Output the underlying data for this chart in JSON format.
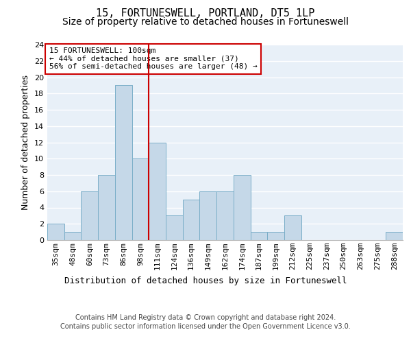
{
  "title": "15, FORTUNESWELL, PORTLAND, DT5 1LP",
  "subtitle": "Size of property relative to detached houses in Fortuneswell",
  "xlabel": "Distribution of detached houses by size in Fortuneswell",
  "ylabel": "Number of detached properties",
  "categories": [
    "35sqm",
    "48sqm",
    "60sqm",
    "73sqm",
    "86sqm",
    "98sqm",
    "111sqm",
    "124sqm",
    "136sqm",
    "149sqm",
    "162sqm",
    "174sqm",
    "187sqm",
    "199sqm",
    "212sqm",
    "225sqm",
    "237sqm",
    "250sqm",
    "263sqm",
    "275sqm",
    "288sqm"
  ],
  "values": [
    2,
    1,
    6,
    8,
    19,
    10,
    12,
    3,
    5,
    6,
    6,
    8,
    1,
    1,
    3,
    0,
    0,
    0,
    0,
    0,
    1
  ],
  "bar_color": "#c5d8e8",
  "bar_edge_color": "#7aaec8",
  "vline_index": 5,
  "vline_color": "#cc0000",
  "annotation_box_color": "#cc0000",
  "annotation_text_line1": "15 FORTUNESWELL: 100sqm",
  "annotation_text_line2": "← 44% of detached houses are smaller (37)",
  "annotation_text_line3": "56% of semi-detached houses are larger (48) →",
  "ylim": [
    0,
    24
  ],
  "yticks": [
    0,
    2,
    4,
    6,
    8,
    10,
    12,
    14,
    16,
    18,
    20,
    22,
    24
  ],
  "background_color": "#e8f0f8",
  "grid_color": "#ffffff",
  "footer_line1": "Contains HM Land Registry data © Crown copyright and database right 2024.",
  "footer_line2": "Contains public sector information licensed under the Open Government Licence v3.0.",
  "title_fontsize": 11,
  "subtitle_fontsize": 10,
  "xlabel_fontsize": 9,
  "ylabel_fontsize": 9,
  "tick_fontsize": 8,
  "annotation_fontsize": 8
}
